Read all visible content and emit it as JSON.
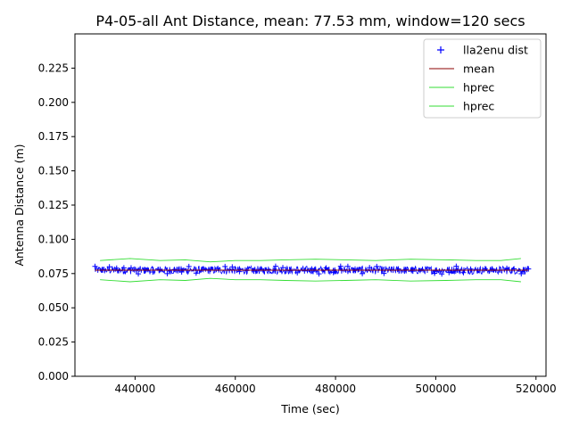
{
  "chart_data": {
    "type": "line",
    "title": "P4-05-all Ant Distance, mean: 77.53 mm, window=120 secs",
    "xlabel": "Time (sec)",
    "ylabel": "Antenna Distance (m)",
    "xlim": [
      428000,
      522000
    ],
    "ylim": [
      0.0,
      0.25
    ],
    "xticks": [
      440000,
      460000,
      480000,
      500000,
      520000
    ],
    "xtick_labels": [
      "440000",
      "460000",
      "480000",
      "500000",
      "520000"
    ],
    "yticks": [
      0.0,
      0.025,
      0.05,
      0.075,
      0.1,
      0.125,
      0.15,
      0.175,
      0.2,
      0.225
    ],
    "ytick_labels": [
      "0.000",
      "0.025",
      "0.050",
      "0.075",
      "0.100",
      "0.125",
      "0.150",
      "0.175",
      "0.200",
      "0.225"
    ],
    "grid": false,
    "legend_position": "top-right",
    "series": [
      {
        "name": "lla2enu dist",
        "style": "marker-plus",
        "color": "#0000ff",
        "x_range": [
          432000,
          518500
        ],
        "approx_center": 0.0775,
        "approx_spread": 0.003
      },
      {
        "name": "mean",
        "style": "line",
        "color": "#8b0000",
        "x": [
          432000,
          518500
        ],
        "y": [
          0.0775,
          0.0775
        ]
      },
      {
        "name": "hprec",
        "style": "line",
        "color": "#33dd33",
        "x": [
          433000,
          439000,
          445000,
          450000,
          455000,
          460000,
          465000,
          470000,
          476000,
          482000,
          488000,
          495000,
          502000,
          508000,
          513000,
          517000
        ],
        "y": [
          0.0845,
          0.086,
          0.0845,
          0.085,
          0.0835,
          0.0845,
          0.0845,
          0.085,
          0.0855,
          0.085,
          0.0845,
          0.0855,
          0.085,
          0.0845,
          0.0845,
          0.086
        ]
      },
      {
        "name": "hprec",
        "style": "line",
        "color": "#33dd33",
        "x": [
          433000,
          439000,
          445000,
          450000,
          455000,
          460000,
          465000,
          470000,
          476000,
          482000,
          488000,
          495000,
          502000,
          508000,
          513000,
          517000
        ],
        "y": [
          0.0705,
          0.069,
          0.0705,
          0.07,
          0.0715,
          0.0705,
          0.0705,
          0.07,
          0.0695,
          0.07,
          0.0705,
          0.0695,
          0.07,
          0.0705,
          0.0705,
          0.069
        ]
      }
    ]
  }
}
